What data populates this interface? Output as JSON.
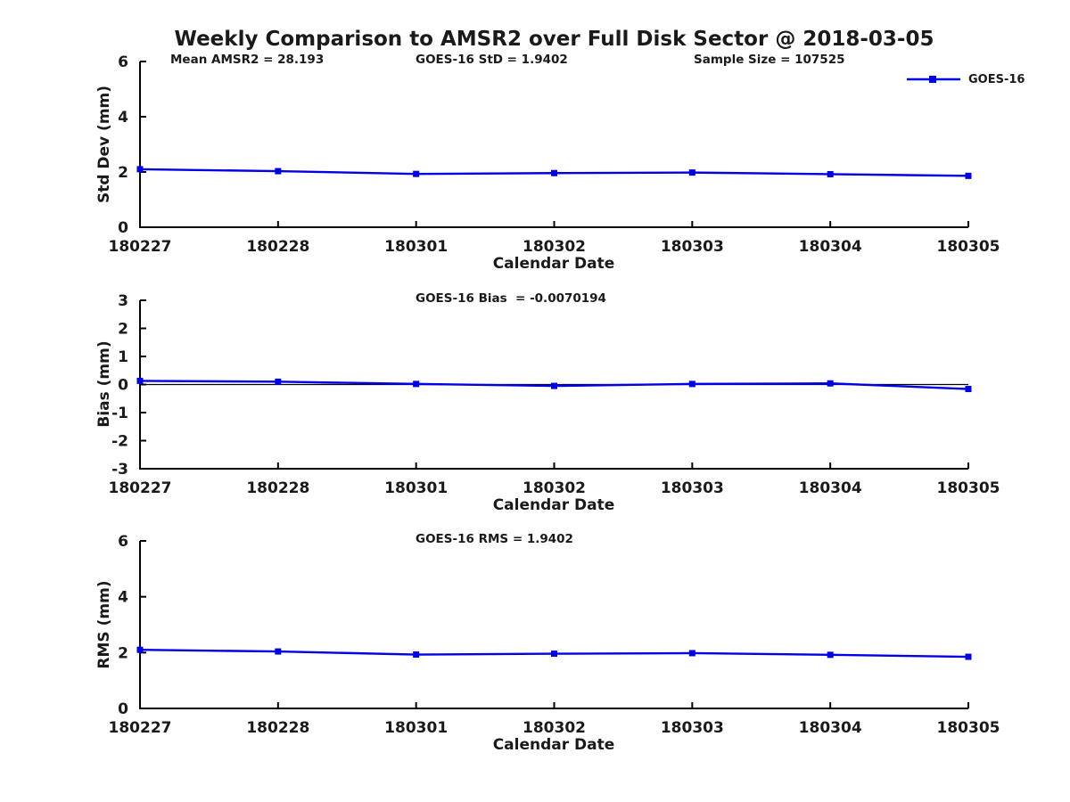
{
  "title": "Weekly Comparison to AMSR2 over Full Disk Sector @ 2018-03-05",
  "legend": {
    "label": "GOES-16"
  },
  "colors": {
    "line": "#0000E8",
    "axis": "#000000",
    "text": "#1a1a1a"
  },
  "chart_data": [
    {
      "type": "line",
      "ylabel": "Std Dev (mm)",
      "xlabel": "Calendar Date",
      "annotations": [
        "Mean AMSR2 = 28.193",
        "GOES-16 StD = 1.9402",
        "Sample Size = 107525"
      ],
      "categories": [
        "180227",
        "180228",
        "180301",
        "180302",
        "180303",
        "180304",
        "180305"
      ],
      "series": [
        {
          "name": "GOES-16",
          "values": [
            2.1,
            2.03,
            1.93,
            1.96,
            1.98,
            1.92,
            1.86
          ]
        }
      ],
      "ylim": [
        0,
        6
      ],
      "yticks": [
        0,
        2,
        4,
        6
      ],
      "legend_position": "top-right",
      "grid": false
    },
    {
      "type": "line",
      "ylabel": "Bias (mm)",
      "xlabel": "Calendar Date",
      "annotations": [
        "GOES-16 Bias  = -0.0070194"
      ],
      "categories": [
        "180227",
        "180228",
        "180301",
        "180302",
        "180303",
        "180304",
        "180305"
      ],
      "series": [
        {
          "name": "GOES-16",
          "values": [
            0.13,
            0.1,
            0.02,
            -0.05,
            0.02,
            0.04,
            -0.16
          ]
        }
      ],
      "ylim": [
        -3,
        3
      ],
      "yticks": [
        -3,
        -2,
        -1,
        0,
        1,
        2,
        3
      ],
      "zero_line": true,
      "grid": false
    },
    {
      "type": "line",
      "ylabel": "RMS (mm)",
      "xlabel": "Calendar Date",
      "annotations": [
        "GOES-16 RMS = 1.9402"
      ],
      "categories": [
        "180227",
        "180228",
        "180301",
        "180302",
        "180303",
        "180304",
        "180305"
      ],
      "series": [
        {
          "name": "GOES-16",
          "values": [
            2.1,
            2.04,
            1.93,
            1.96,
            1.98,
            1.92,
            1.85
          ]
        }
      ],
      "ylim": [
        0,
        6
      ],
      "yticks": [
        0,
        2,
        4,
        6
      ],
      "grid": false
    }
  ]
}
